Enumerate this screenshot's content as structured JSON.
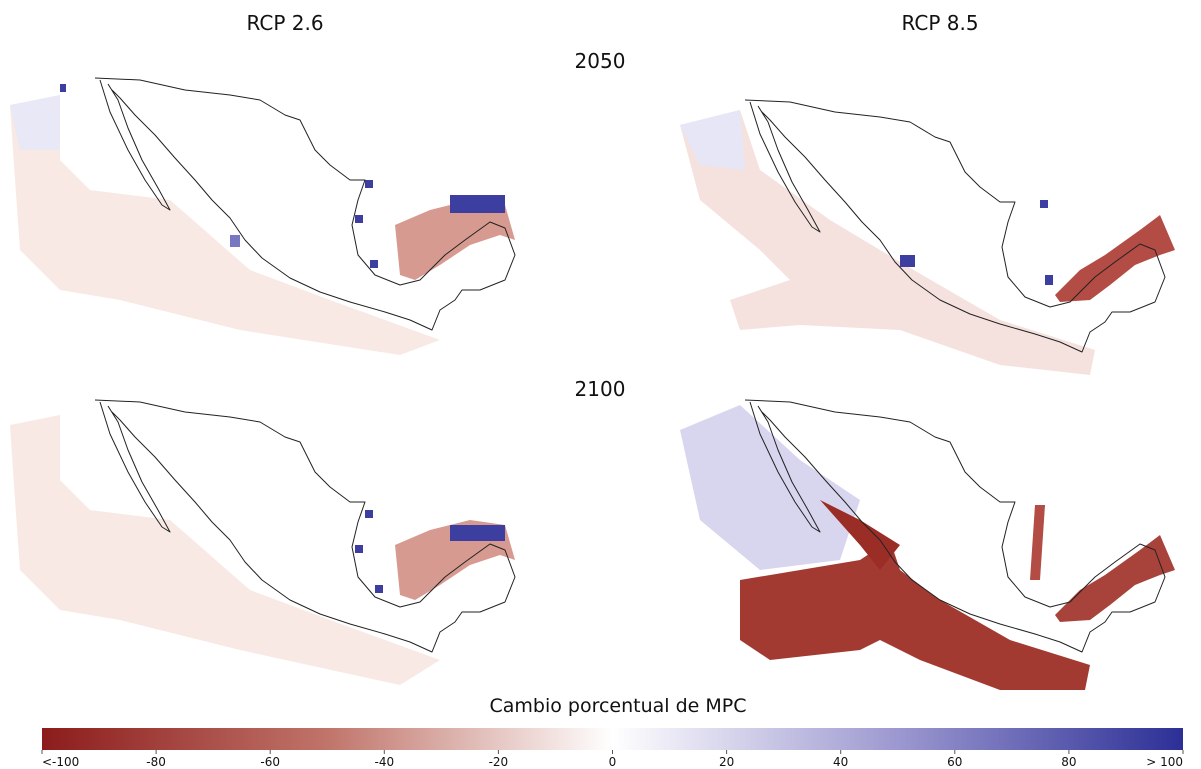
{
  "columns": [
    "RCP 2.6",
    "RCP 8.5"
  ],
  "rows": [
    "2050",
    "2100"
  ],
  "colorbar": {
    "title": "Cambio porcentual de MPC",
    "range": [
      -100,
      100
    ],
    "ticks": [
      {
        "value": -100,
        "label": "<-100"
      },
      -80,
      -60,
      -40,
      -20,
      0,
      20,
      40,
      60,
      80,
      {
        "value": 100,
        "label": "> 100"
      }
    ]
  }
}
